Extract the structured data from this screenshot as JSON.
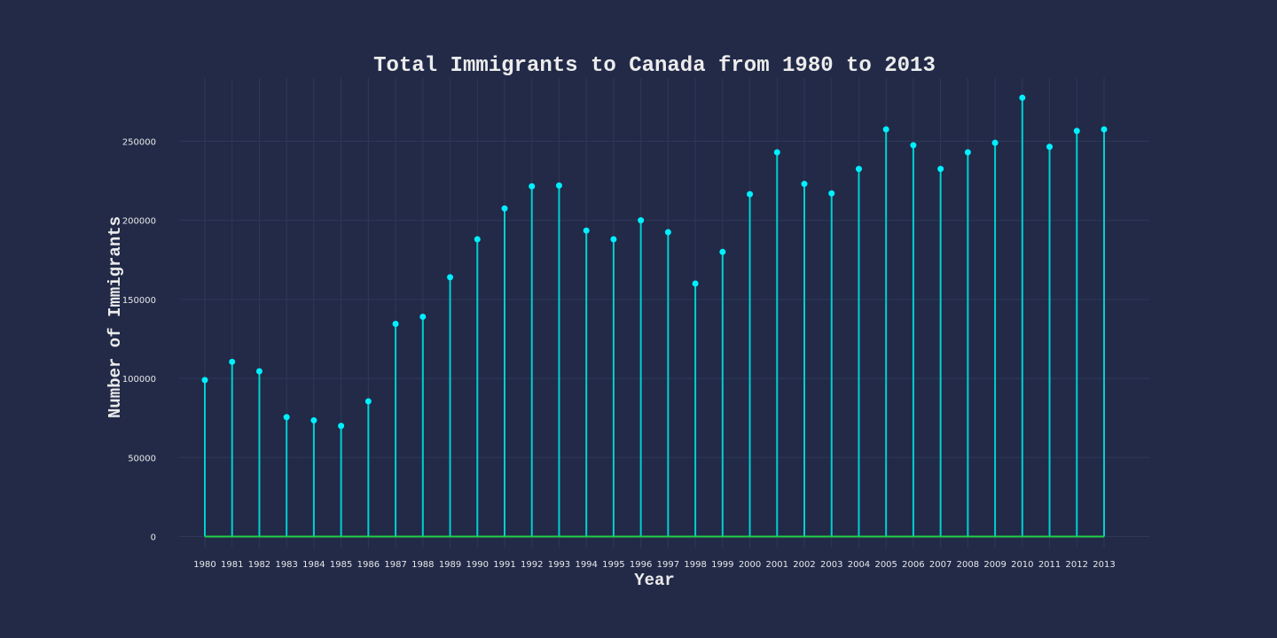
{
  "chart_data": {
    "type": "stem",
    "title": "Total Immigrants to Canada from 1980 to 2013",
    "xlabel": "Year",
    "ylabel": "Number of Immigrants",
    "x": [
      "1980",
      "1981",
      "1982",
      "1983",
      "1984",
      "1985",
      "1986",
      "1987",
      "1988",
      "1989",
      "1990",
      "1991",
      "1992",
      "1993",
      "1994",
      "1995",
      "1996",
      "1997",
      "1998",
      "1999",
      "2000",
      "2001",
      "2002",
      "2003",
      "2004",
      "2005",
      "2006",
      "2007",
      "2008",
      "2009",
      "2010",
      "2011",
      "2012",
      "2013"
    ],
    "values": [
      99000,
      110500,
      104500,
      75500,
      73500,
      70000,
      85500,
      134500,
      139000,
      164000,
      188000,
      207500,
      221500,
      222000,
      193500,
      188000,
      200000,
      192500,
      160000,
      180000,
      216500,
      243000,
      223000,
      217000,
      232500,
      257500,
      247500,
      232500,
      243000,
      249000,
      277500,
      246500,
      256500,
      257500
    ],
    "yticks": [
      0,
      50000,
      100000,
      150000,
      200000,
      250000
    ],
    "ylim": [
      -7000,
      290000
    ],
    "grid": true,
    "colors": {
      "background": "#222a48",
      "stem": "#00d0d0",
      "marker": "#00f0ff",
      "baseline": "#22d048",
      "grid": "#2f3858"
    }
  }
}
